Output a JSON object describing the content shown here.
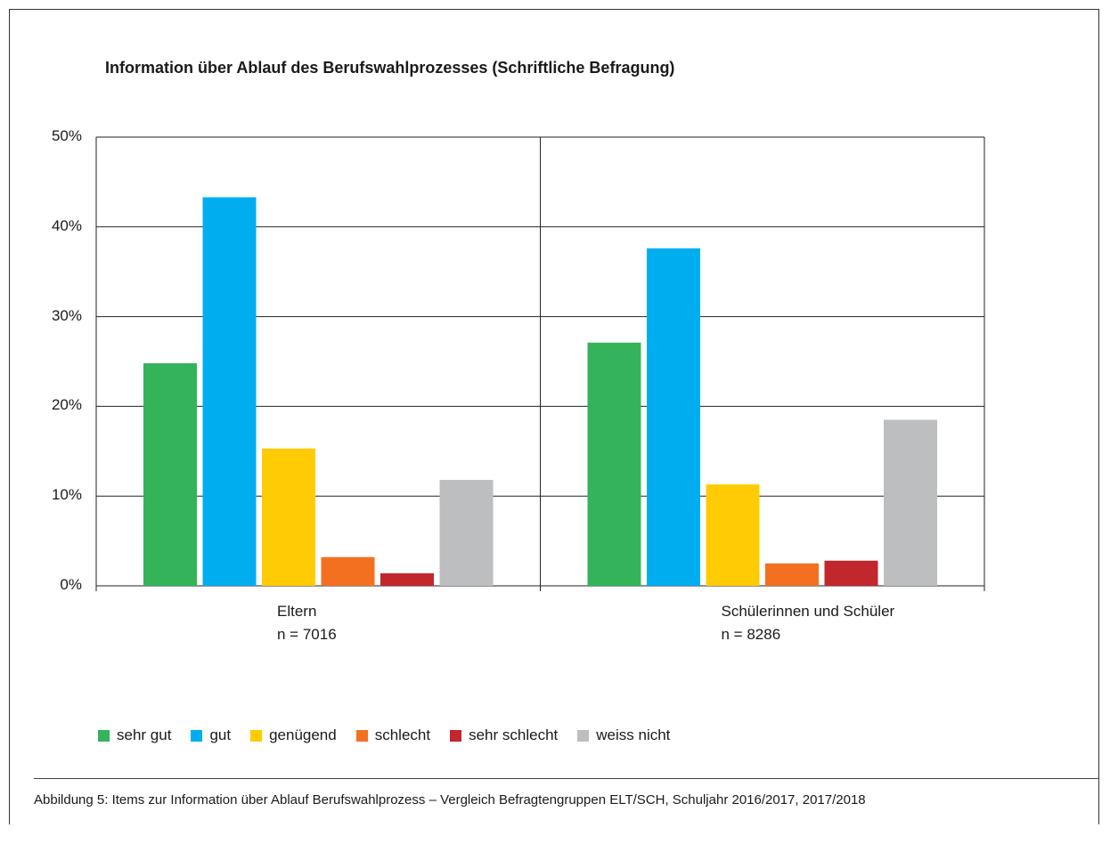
{
  "chart_data": {
    "type": "bar",
    "title": "Information über Ablauf des Berufswahlprozesses (Schriftliche Befragung)",
    "ylim": [
      0,
      50
    ],
    "yticks": [
      "0%",
      "10%",
      "20%",
      "30%",
      "40%",
      "50%"
    ],
    "grid": true,
    "legend_position": "bottom",
    "groups": [
      {
        "label": "Eltern",
        "n": "n = 7016"
      },
      {
        "label": "Schülerinnen und Schüler",
        "n": "n = 8286"
      }
    ],
    "series": [
      {
        "name": "sehr gut",
        "color": "#34b35a",
        "values": [
          24.8,
          27.1
        ]
      },
      {
        "name": "gut",
        "color": "#00aeef",
        "values": [
          43.3,
          37.6
        ]
      },
      {
        "name": "genügend",
        "color": "#ffcb05",
        "values": [
          15.3,
          11.3
        ]
      },
      {
        "name": "schlecht",
        "color": "#f37021",
        "values": [
          3.2,
          2.5
        ]
      },
      {
        "name": "sehr schlecht",
        "color": "#c1272d",
        "values": [
          1.4,
          2.8
        ]
      },
      {
        "name": "weiss nicht",
        "color": "#bcbec0",
        "values": [
          11.8,
          18.5
        ]
      }
    ]
  },
  "caption": "Abbildung 5: Items zur Information über Ablauf Berufswahlprozess – Vergleich Befragtengruppen ELT/SCH, Schuljahr 2016/2017, 2017/2018"
}
